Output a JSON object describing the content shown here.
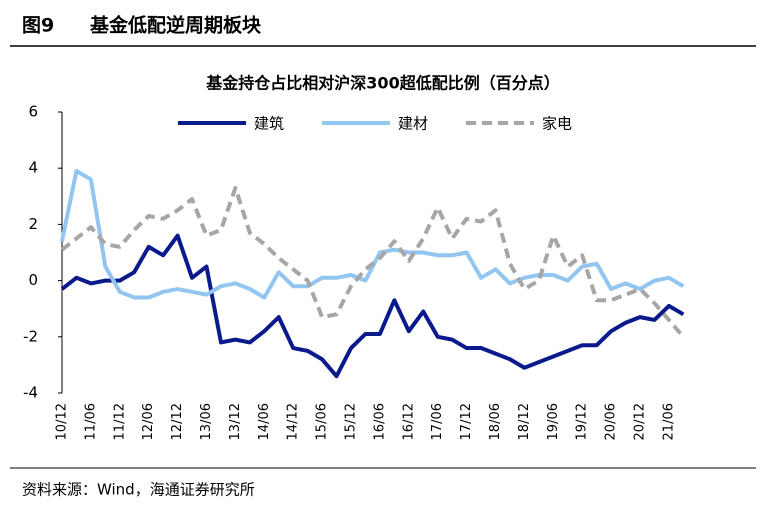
{
  "figure_label": "图9",
  "figure_title": "基金低配逆周期板块",
  "source": "资料来源：Wind，海通证券研究所",
  "chart_data": {
    "type": "line",
    "title": "基金持仓占比相对沪深300超低配比例（百分点）",
    "categories": [
      "10/12",
      null,
      "11/06",
      null,
      "11/12",
      null,
      "12/06",
      null,
      "12/12",
      null,
      "13/06",
      null,
      "13/12",
      null,
      "14/06",
      null,
      "14/12",
      null,
      "15/06",
      null,
      "15/12",
      null,
      "16/06",
      null,
      "16/12",
      null,
      "17/06",
      null,
      "17/12",
      null,
      "18/06",
      null,
      "18/12",
      null,
      "19/06",
      null,
      "19/12",
      null,
      "20/06",
      null,
      "20/12",
      null,
      "21/06",
      null
    ],
    "series": [
      {
        "name": "建筑",
        "color": "#0a1a8c",
        "dash": false,
        "values": [
          -0.3,
          0.1,
          -0.1,
          0.0,
          0.0,
          0.3,
          1.2,
          0.9,
          1.6,
          0.1,
          0.5,
          -2.2,
          -2.1,
          -2.2,
          -1.8,
          -1.3,
          -2.4,
          -2.5,
          -2.8,
          -3.4,
          -2.4,
          -1.9,
          -1.9,
          -0.7,
          -1.8,
          -1.1,
          -2.0,
          -2.1,
          -2.4,
          -2.4,
          -2.6,
          -2.8,
          -3.1,
          -2.9,
          -2.7,
          -2.5,
          -2.3,
          -2.3,
          -1.8,
          -1.5,
          -1.3,
          -1.4,
          -0.9,
          -1.2
        ]
      },
      {
        "name": "建材",
        "color": "#92c5f0",
        "dash": false,
        "values": [
          1.4,
          3.9,
          3.6,
          0.5,
          -0.4,
          -0.6,
          -0.6,
          -0.4,
          -0.3,
          -0.4,
          -0.5,
          -0.2,
          -0.1,
          -0.3,
          -0.6,
          0.3,
          -0.2,
          -0.2,
          0.1,
          0.1,
          0.2,
          0.0,
          1.0,
          1.1,
          1.0,
          1.0,
          0.9,
          0.9,
          1.0,
          0.1,
          0.4,
          -0.1,
          0.1,
          0.2,
          0.2,
          0.0,
          0.5,
          0.6,
          -0.3,
          -0.1,
          -0.3,
          0.0,
          0.1,
          -0.2
        ]
      },
      {
        "name": "家电",
        "color": "#a6a6a6",
        "dash": true,
        "values": [
          1.1,
          1.5,
          1.9,
          1.3,
          1.2,
          1.8,
          2.3,
          2.2,
          2.5,
          2.9,
          1.6,
          1.8,
          3.3,
          1.7,
          1.3,
          0.8,
          0.4,
          0.0,
          -1.3,
          -1.2,
          -0.2,
          0.4,
          0.8,
          1.4,
          0.7,
          1.5,
          2.6,
          1.5,
          2.2,
          2.1,
          2.5,
          0.6,
          -0.3,
          0.0,
          1.6,
          0.5,
          0.9,
          -0.7,
          -0.7,
          -0.5,
          -0.3,
          -0.8,
          -1.4,
          -2.0
        ]
      }
    ],
    "ylim": [
      -4,
      6
    ],
    "yticks": [
      -4,
      -2,
      0,
      2,
      4,
      6
    ],
    "grid": false,
    "legend": "top"
  }
}
